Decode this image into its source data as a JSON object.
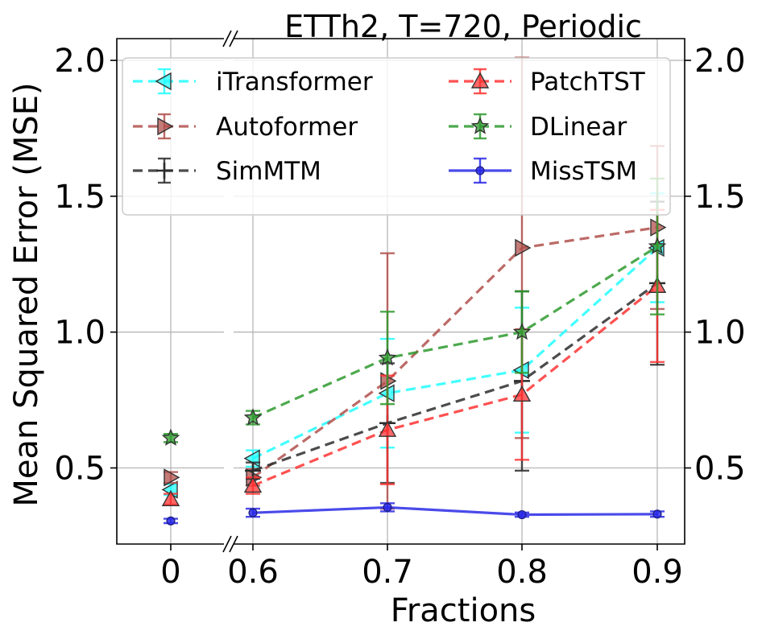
{
  "chart_data": {
    "type": "line",
    "title": "ETTh2, T=720, Periodic",
    "xlabel": "Fractions",
    "ylabel": "Mean Squared Error (MSE)",
    "ylim": [
      0.22,
      2.08
    ],
    "yticks": [
      0.5,
      1.0,
      1.5,
      2.0
    ],
    "ytick_labels": [
      "0.5",
      "1.0",
      "1.5",
      "2.0"
    ],
    "x_categories": [
      "0",
      "0.6",
      "0.7",
      "0.8",
      "0.9"
    ],
    "broken_x_axis": true,
    "grid": true,
    "legend_position": "top",
    "series": [
      {
        "name": "iTransformer",
        "color": "#22ffff",
        "marker": "triangle-left",
        "linestyle": "dashed",
        "values": [
          0.42,
          0.535,
          0.775,
          0.86,
          1.31
        ],
        "errors": [
          0.02,
          0.03,
          0.2,
          0.23,
          0.2
        ]
      },
      {
        "name": "Autoformer",
        "color": "#b0504c",
        "marker": "triangle-right",
        "linestyle": "dashed",
        "values": [
          0.465,
          0.465,
          0.82,
          1.31,
          1.385
        ],
        "errors": [
          0.02,
          0.03,
          0.47,
          0.7,
          0.3
        ]
      },
      {
        "name": "SimMTM",
        "color": "#2d2d2d",
        "marker": "plus",
        "linestyle": "dashed",
        "values": [
          null,
          0.49,
          0.665,
          0.82,
          1.18
        ],
        "errors": [
          null,
          0.03,
          0.22,
          0.33,
          0.3
        ]
      },
      {
        "name": "PatchTST",
        "color": "#ff3333",
        "marker": "triangle-up",
        "linestyle": "dashed",
        "values": [
          0.385,
          0.435,
          0.64,
          0.77,
          1.17
        ],
        "errors": [
          0.02,
          0.03,
          0.2,
          0.24,
          0.28
        ]
      },
      {
        "name": "DLinear",
        "color": "#2e9a2e",
        "marker": "star",
        "linestyle": "dashed",
        "values": [
          0.61,
          0.685,
          0.905,
          1.0,
          1.315
        ],
        "errors": [
          0.015,
          0.025,
          0.17,
          0.15,
          0.25
        ]
      },
      {
        "name": "MissTSM",
        "color": "#2a2ae8",
        "marker": "circle",
        "linestyle": "solid",
        "values": [
          0.305,
          0.335,
          0.355,
          0.328,
          0.33
        ],
        "errors": [
          0.008,
          0.015,
          0.015,
          0.008,
          0.01
        ]
      }
    ]
  }
}
